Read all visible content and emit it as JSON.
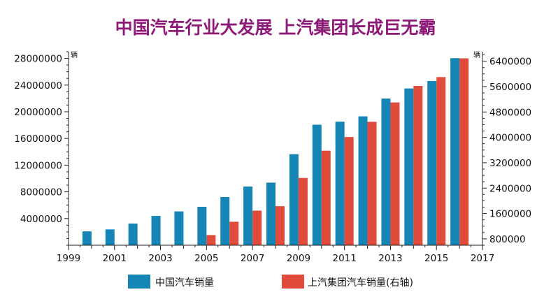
{
  "chart_data": {
    "type": "bar",
    "title": "中国汽车行业大发展 上汽集团长成巨无霸",
    "x_ticks": [
      "1999",
      "2001",
      "2003",
      "2005",
      "2007",
      "2009",
      "2011",
      "2013",
      "2015",
      "2017"
    ],
    "xlim": [
      1999,
      2017
    ],
    "y_left": {
      "unit": "辆",
      "ylim": [
        0,
        29000000
      ],
      "ticks": [
        4000000,
        8000000,
        12000000,
        16000000,
        20000000,
        24000000,
        28000000
      ],
      "tick_labels": [
        "4000000",
        "8000000",
        "12000000",
        "16000000",
        "20000000",
        "24000000",
        "28000000"
      ]
    },
    "y_right": {
      "unit": "辆",
      "ylim": [
        600000,
        6700000
      ],
      "ticks": [
        800000,
        1600000,
        2400000,
        3200000,
        4000000,
        4800000,
        5600000,
        6400000
      ],
      "tick_labels": [
        "800000",
        "1600000",
        "2400000",
        "3200000",
        "4000000",
        "4800000",
        "5600000",
        "6400000"
      ]
    },
    "series": [
      {
        "name": "中国汽车销量",
        "axis": "left",
        "color": "#1485b5",
        "points": [
          {
            "x": 2000,
            "y": 2080000
          },
          {
            "x": 2001,
            "y": 2370000
          },
          {
            "x": 2002,
            "y": 3250000
          },
          {
            "x": 2003,
            "y": 4390000
          },
          {
            "x": 2004,
            "y": 5070000
          },
          {
            "x": 2005,
            "y": 5760000
          },
          {
            "x": 2006,
            "y": 7220000
          },
          {
            "x": 2007,
            "y": 8790000
          },
          {
            "x": 2008,
            "y": 9380000
          },
          {
            "x": 2009,
            "y": 13640000
          },
          {
            "x": 2010,
            "y": 18060000
          },
          {
            "x": 2011,
            "y": 18510000
          },
          {
            "x": 2012,
            "y": 19310000
          },
          {
            "x": 2013,
            "y": 21980000
          },
          {
            "x": 2014,
            "y": 23490000
          },
          {
            "x": 2015,
            "y": 24600000
          },
          {
            "x": 2016,
            "y": 28030000
          }
        ]
      },
      {
        "name": "上汽集团汽车销量(右轴)",
        "axis": "right",
        "color": "#e14b3b",
        "points": [
          {
            "x": 2005,
            "y": 920000
          },
          {
            "x": 2006,
            "y": 1340000
          },
          {
            "x": 2007,
            "y": 1690000
          },
          {
            "x": 2008,
            "y": 1830000
          },
          {
            "x": 2009,
            "y": 2720000
          },
          {
            "x": 2010,
            "y": 3580000
          },
          {
            "x": 2011,
            "y": 4010000
          },
          {
            "x": 2012,
            "y": 4490000
          },
          {
            "x": 2013,
            "y": 5100000
          },
          {
            "x": 2014,
            "y": 5620000
          },
          {
            "x": 2015,
            "y": 5900000
          },
          {
            "x": 2016,
            "y": 6490000
          }
        ]
      }
    ],
    "legend_position": "bottom",
    "grid": false
  }
}
